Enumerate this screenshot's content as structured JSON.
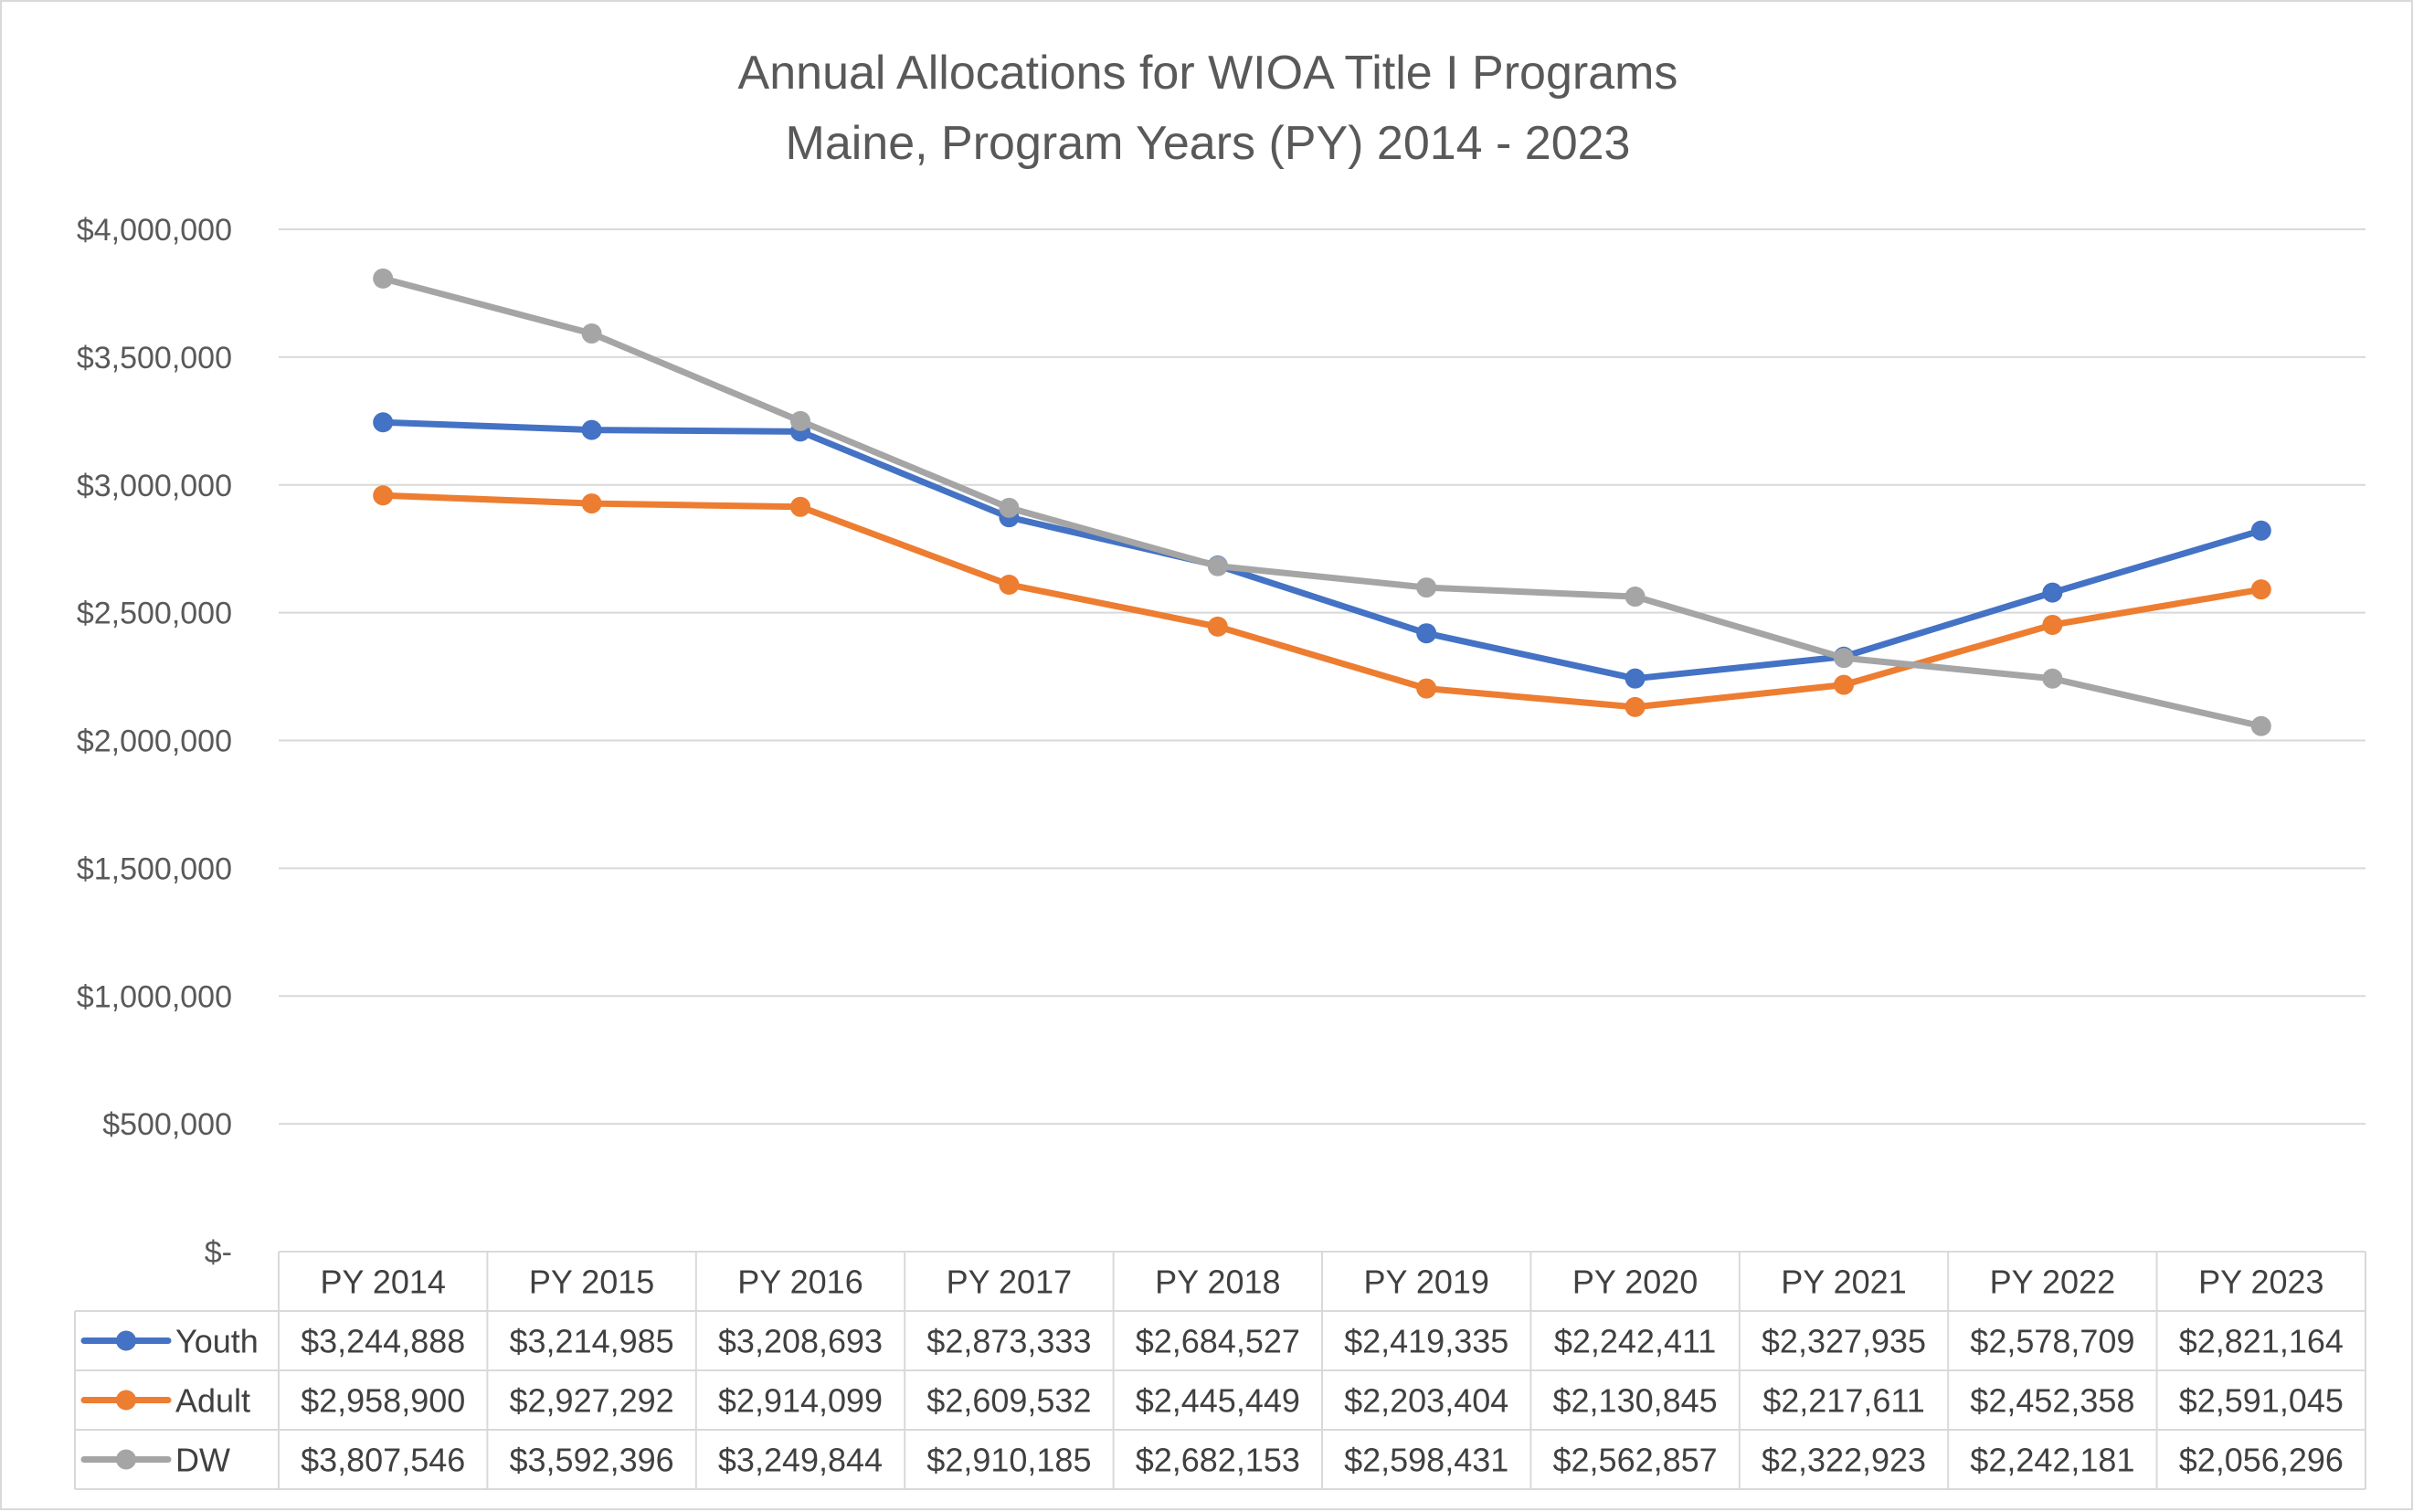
{
  "chart_data": {
    "type": "line",
    "title": "Annual Allocations for WIOA Title I Programs",
    "subtitle": "Maine, Program Years (PY) 2014 - 2023",
    "categories": [
      "PY 2014",
      "PY 2015",
      "PY 2016",
      "PY 2017",
      "PY 2018",
      "PY 2019",
      "PY 2020",
      "PY 2021",
      "PY 2022",
      "PY 2023"
    ],
    "ylim": [
      0,
      4000000
    ],
    "yticks": [
      0,
      500000,
      1000000,
      1500000,
      2000000,
      2500000,
      3000000,
      3500000,
      4000000
    ],
    "ytick_labels": [
      "$-",
      "$500,000",
      "$1,000,000",
      "$1,500,000",
      "$2,000,000",
      "$2,500,000",
      "$3,000,000",
      "$3,500,000",
      "$4,000,000"
    ],
    "grid": true,
    "legend": "data-table",
    "series": [
      {
        "name": "Youth",
        "color": "#4472c4",
        "values": [
          3244888,
          3214985,
          3208693,
          2873333,
          2684527,
          2419335,
          2242411,
          2327935,
          2578709,
          2821164
        ],
        "labels": [
          "$3,244,888",
          "$3,214,985",
          "$3,208,693",
          "$2,873,333",
          "$2,684,527",
          "$2,419,335",
          "$2,242,411",
          "$2,327,935",
          "$2,578,709",
          "$2,821,164"
        ]
      },
      {
        "name": "Adult",
        "color": "#ed7d31",
        "values": [
          2958900,
          2927292,
          2914099,
          2609532,
          2445449,
          2203404,
          2130845,
          2217611,
          2452358,
          2591045
        ],
        "labels": [
          "$2,958,900",
          "$2,927,292",
          "$2,914,099",
          "$2,609,532",
          "$2,445,449",
          "$2,203,404",
          "$2,130,845",
          "$2,217,611",
          "$2,452,358",
          "$2,591,045"
        ]
      },
      {
        "name": "DW",
        "color": "#a5a5a5",
        "values": [
          3807546,
          3592396,
          3249844,
          2910185,
          2682153,
          2598431,
          2562857,
          2322923,
          2242181,
          2056296
        ],
        "labels": [
          "$3,807,546",
          "$3,592,396",
          "$3,249,844",
          "$2,910,185",
          "$2,682,153",
          "$2,598,431",
          "$2,562,857",
          "$2,322,923",
          "$2,242,181",
          "$2,056,296"
        ]
      }
    ]
  }
}
